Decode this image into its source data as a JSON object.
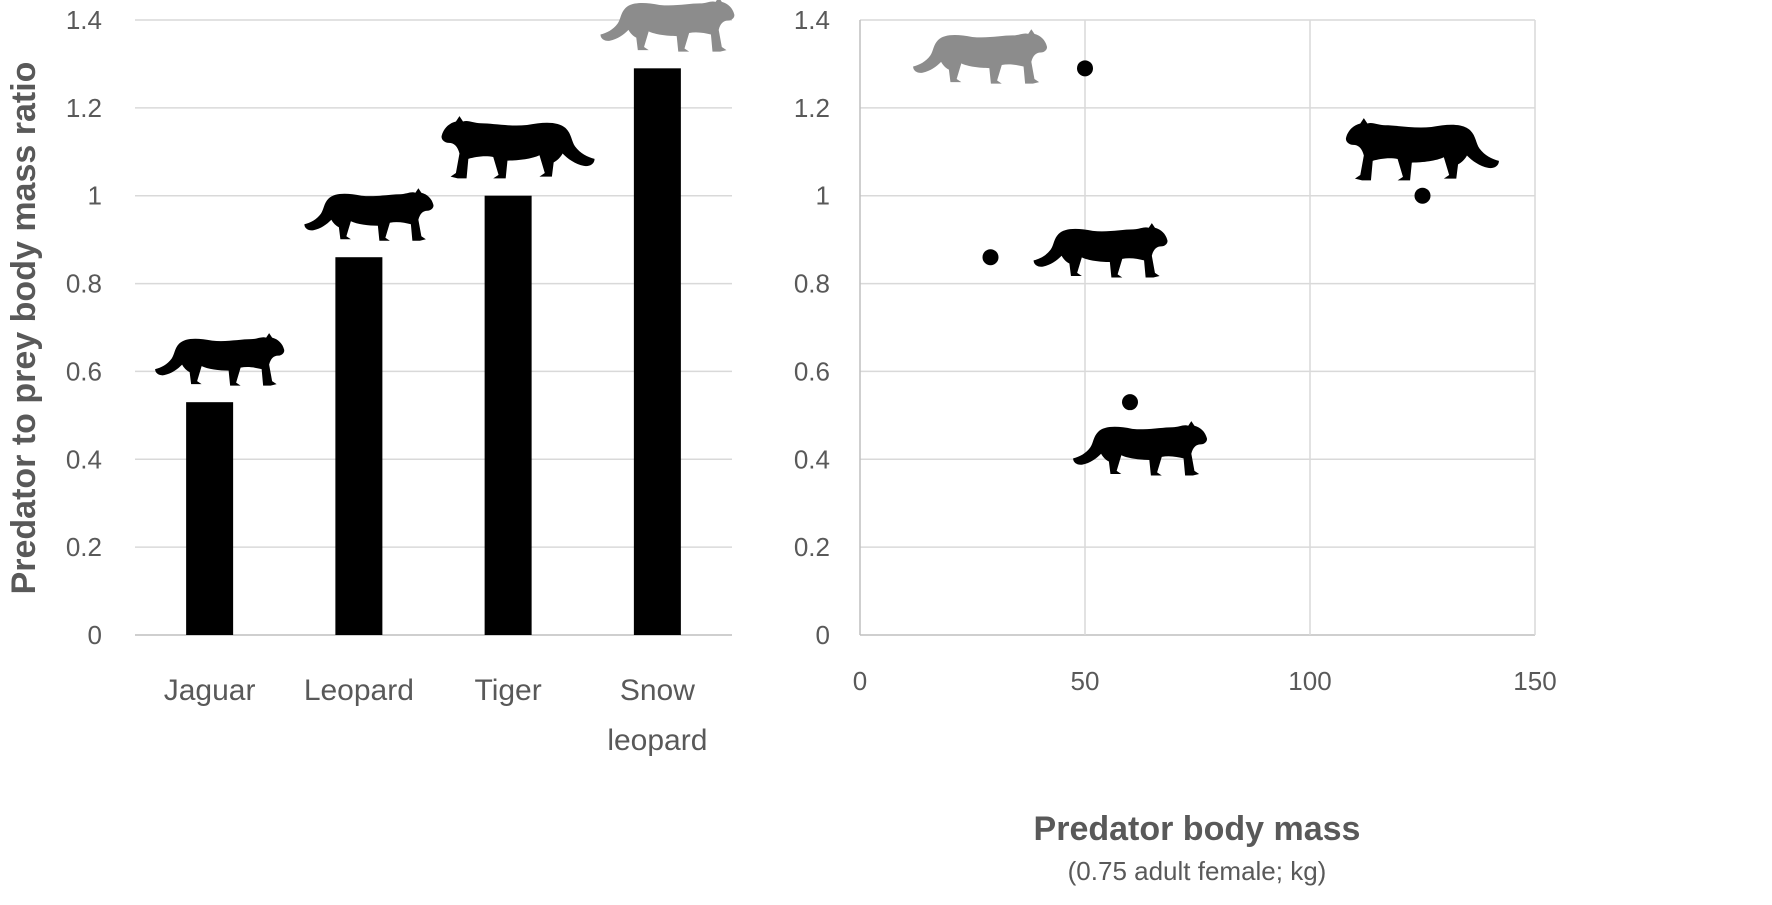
{
  "chart_data": [
    {
      "type": "bar",
      "categories": [
        "Jaguar",
        "Leopard",
        "Tiger",
        "Snow leopard"
      ],
      "category_lines": [
        [
          "Jaguar"
        ],
        [
          "Leopard"
        ],
        [
          "Tiger"
        ],
        [
          "Snow",
          "leopard"
        ]
      ],
      "values": [
        0.53,
        0.86,
        1.0,
        1.29
      ],
      "ylabel": "Predator to prey body mass ratio",
      "xlabel": "",
      "ylim": [
        0,
        1.4
      ],
      "yticks": [
        0,
        0.2,
        0.4,
        0.6,
        0.8,
        1,
        1.2,
        1.4
      ],
      "ytick_labels": [
        "0",
        "0.2",
        "0.4",
        "0.6",
        "0.8",
        "1",
        "1.2",
        "1.4"
      ],
      "grid": true,
      "bar_color": "#000000",
      "icons": [
        "jaguar-silhouette-icon",
        "leopard-silhouette-icon",
        "tiger-silhouette-icon",
        "snow-leopard-icon"
      ]
    },
    {
      "type": "scatter",
      "points": [
        {
          "name": "Jaguar",
          "x": 60,
          "y": 0.53
        },
        {
          "name": "Leopard",
          "x": 29,
          "y": 0.86
        },
        {
          "name": "Tiger",
          "x": 125,
          "y": 1.0
        },
        {
          "name": "Snow leopard",
          "x": 50,
          "y": 1.29
        }
      ],
      "xlabel": "Predator body mass",
      "xlabel_sub": "(0.75 adult female; kg)",
      "xlim": [
        0,
        150
      ],
      "ylim": [
        0,
        1.4
      ],
      "xticks": [
        0,
        50,
        100,
        150
      ],
      "xtick_labels": [
        "0",
        "50",
        "100",
        "150"
      ],
      "yticks": [
        0,
        0.2,
        0.4,
        0.6,
        0.8,
        1,
        1.2,
        1.4
      ],
      "ytick_labels": [
        "0",
        "0.2",
        "0.4",
        "0.6",
        "0.8",
        "1",
        "1.2",
        "1.4"
      ],
      "grid": true,
      "marker_color": "#000000",
      "icons": [
        "jaguar-silhouette-icon",
        "leopard-silhouette-icon",
        "tiger-silhouette-icon",
        "snow-leopard-icon"
      ]
    }
  ],
  "colors": {
    "text": "#595959",
    "grid": "#d9d9d9",
    "silhouette": "#000000",
    "snow_leopard": "#8c8c8c"
  }
}
